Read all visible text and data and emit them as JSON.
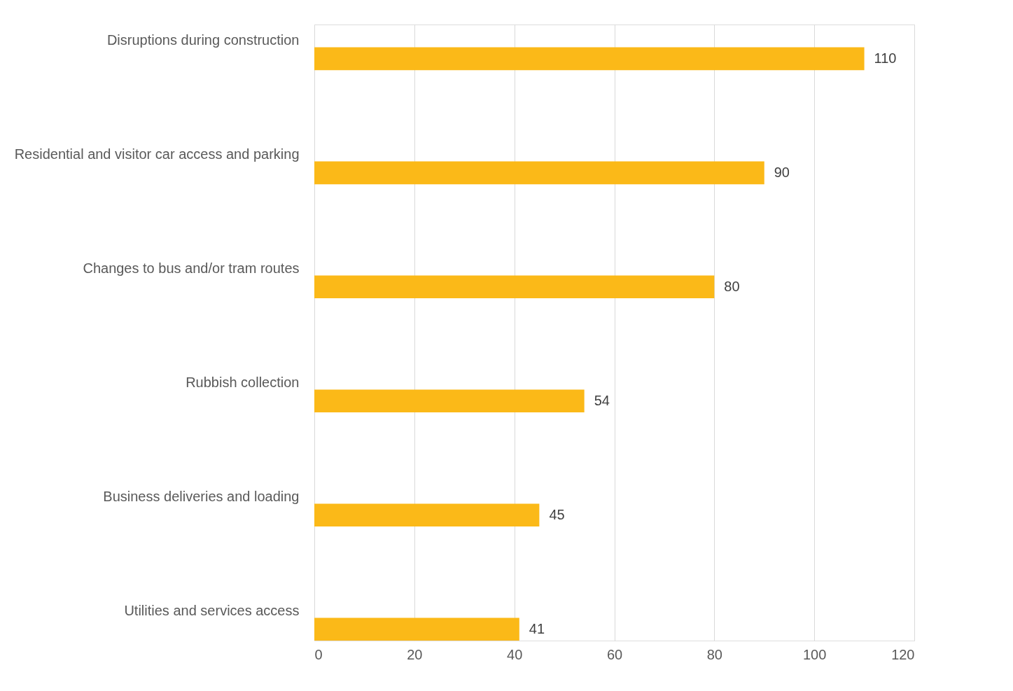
{
  "chart_data": {
    "type": "bar",
    "orientation": "horizontal",
    "categories": [
      "Disruptions during construction",
      "Residential and visitor car access and parking",
      "Changes to bus and/or tram routes",
      "Rubbish collection",
      "Business deliveries and loading",
      "Utilities and services access"
    ],
    "values": [
      110,
      90,
      80,
      54,
      45,
      41
    ],
    "color": "#fbb918",
    "xlim": [
      0,
      120
    ],
    "xticks": [
      0,
      20,
      40,
      60,
      80,
      100,
      120
    ],
    "grid": "x",
    "data_labels": true
  }
}
